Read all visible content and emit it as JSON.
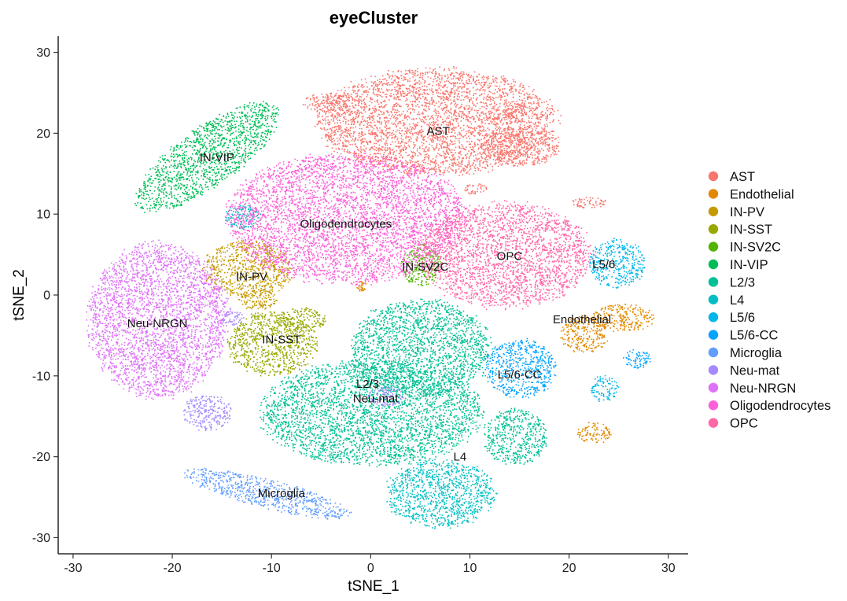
{
  "chart_data": {
    "type": "scatter",
    "title": "eyeCluster",
    "xlabel": "tSNE_1",
    "ylabel": "tSNE_2",
    "xlim": [
      -31.5,
      32
    ],
    "ylim": [
      -32,
      32
    ],
    "xticks": [
      -30,
      -20,
      -10,
      0,
      10,
      20,
      30
    ],
    "yticks": [
      -30,
      -20,
      -10,
      0,
      10,
      20,
      30
    ],
    "grid": false,
    "legend_position": "right",
    "series": [
      {
        "name": "AST",
        "color": "#F8766D",
        "regions": [
          {
            "cx": 6.5,
            "cy": 21.5,
            "rx": 12.0,
            "ry": 6.5
          },
          {
            "cx": -4.0,
            "cy": 23.8,
            "rx": 3.0,
            "ry": 1.2
          },
          {
            "cx": 15.0,
            "cy": 18.5,
            "rx": 4.0,
            "ry": 2.5
          },
          {
            "cx": 14.5,
            "cy": 22.5,
            "rx": 1.2,
            "ry": 1.2
          },
          {
            "cx": 10.5,
            "cy": 13.2,
            "rx": 1.2,
            "ry": 0.7
          },
          {
            "cx": 22.0,
            "cy": 11.5,
            "rx": 1.8,
            "ry": 0.7
          }
        ],
        "labels": [
          {
            "text": "AST",
            "x": 6.8,
            "y": 20.3
          }
        ]
      },
      {
        "name": "Endothelial",
        "color": "#E38900",
        "regions": [
          {
            "cx": 25.5,
            "cy": -2.8,
            "rx": 3.2,
            "ry": 1.7
          },
          {
            "cx": 21.5,
            "cy": -4.8,
            "rx": 2.4,
            "ry": 2.3
          },
          {
            "cx": 22.5,
            "cy": -17.0,
            "rx": 1.7,
            "ry": 1.3
          },
          {
            "cx": -1.0,
            "cy": 1.2,
            "rx": 0.5,
            "ry": 0.7
          }
        ],
        "labels": [
          {
            "text": "Endothelial",
            "x": 21.3,
            "y": -3.0
          }
        ]
      },
      {
        "name": "IN-PV",
        "color": "#C49A00",
        "regions": [
          {
            "cx": -12.5,
            "cy": 3.2,
            "rx": 4.5,
            "ry": 3.5
          },
          {
            "cx": -11.5,
            "cy": -0.5,
            "rx": 2.0,
            "ry": 1.3
          }
        ],
        "labels": [
          {
            "text": "IN-PV",
            "x": -12.0,
            "y": 2.3
          }
        ]
      },
      {
        "name": "IN-SST",
        "color": "#99A800",
        "regions": [
          {
            "cx": -10.0,
            "cy": -6.0,
            "rx": 4.5,
            "ry": 4.0
          },
          {
            "cx": -7.0,
            "cy": -3.0,
            "rx": 2.5,
            "ry": 1.5
          }
        ],
        "labels": [
          {
            "text": "IN-SST",
            "x": -9.0,
            "y": -5.5
          }
        ]
      },
      {
        "name": "IN-SV2C",
        "color": "#53B400",
        "regions": [
          {
            "cx": 5.0,
            "cy": 3.8,
            "rx": 2.0,
            "ry": 2.6
          }
        ],
        "labels": [
          {
            "text": "IN-SV2C",
            "x": 5.5,
            "y": 3.5
          }
        ]
      },
      {
        "name": "IN-VIP",
        "color": "#00BC56",
        "regions": [
          {
            "cx": -16.5,
            "cy": 17.2,
            "rx": 8.5,
            "ry": 3.6,
            "rot": 35
          }
        ],
        "labels": [
          {
            "text": "IN-VIP",
            "x": -15.5,
            "y": 17.0
          }
        ]
      },
      {
        "name": "L2/3",
        "color": "#00C094",
        "regions": [
          {
            "cx": 0.0,
            "cy": -14.5,
            "rx": 11.0,
            "ry": 6.5
          },
          {
            "cx": 5.0,
            "cy": -6.5,
            "rx": 7.0,
            "ry": 6.0
          },
          {
            "cx": 14.5,
            "cy": -17.5,
            "rx": 3.2,
            "ry": 3.5
          }
        ],
        "labels": [
          {
            "text": "L2/3",
            "x": -0.3,
            "y": -11.0
          }
        ]
      },
      {
        "name": "L4",
        "color": "#00BFC4",
        "regions": [
          {
            "cx": 7.0,
            "cy": -24.5,
            "rx": 5.5,
            "ry": 4.2
          },
          {
            "cx": -13.0,
            "cy": 9.8,
            "rx": 1.8,
            "ry": 1.6
          }
        ],
        "labels": [
          {
            "text": "L4",
            "x": 9.0,
            "y": -20.0
          }
        ]
      },
      {
        "name": "L5/6",
        "color": "#00B6EB",
        "regions": [
          {
            "cx": 24.8,
            "cy": 4.0,
            "rx": 2.8,
            "ry": 3.0
          },
          {
            "cx": 23.5,
            "cy": -11.5,
            "rx": 1.4,
            "ry": 1.6
          }
        ],
        "labels": [
          {
            "text": "L5/6",
            "x": 23.5,
            "y": 3.8
          }
        ]
      },
      {
        "name": "L5/6-CC",
        "color": "#06A4FF",
        "regions": [
          {
            "cx": 15.0,
            "cy": -9.0,
            "rx": 3.6,
            "ry": 3.6
          },
          {
            "cx": 26.8,
            "cy": -7.8,
            "rx": 1.4,
            "ry": 1.2
          }
        ],
        "labels": [
          {
            "text": "L5/6-CC",
            "x": 15.0,
            "y": -9.8
          }
        ]
      },
      {
        "name": "Microglia",
        "color": "#619CFF",
        "regions": [
          {
            "cx": -10.5,
            "cy": -24.5,
            "rx": 8.5,
            "ry": 1.8,
            "rot": -14
          }
        ],
        "labels": [
          {
            "text": "Microglia",
            "x": -9.0,
            "y": -24.5
          }
        ]
      },
      {
        "name": "Neu-mat",
        "color": "#A58AFF",
        "regions": [
          {
            "cx": -16.5,
            "cy": -14.5,
            "rx": 2.5,
            "ry": 2.2
          },
          {
            "cx": -14.0,
            "cy": -2.7,
            "rx": 1.2,
            "ry": 1.1
          },
          {
            "cx": 1.5,
            "cy": -12.5,
            "rx": 1.8,
            "ry": 1.2
          }
        ],
        "labels": [
          {
            "text": "Neu-mat",
            "x": 0.5,
            "y": -12.8
          }
        ]
      },
      {
        "name": "Neu-NRGN",
        "color": "#DF70F8",
        "regions": [
          {
            "cx": -21.5,
            "cy": -3.0,
            "rx": 7.0,
            "ry": 9.5
          }
        ],
        "labels": [
          {
            "text": "Neu-NRGN",
            "x": -21.5,
            "y": -3.5
          }
        ]
      },
      {
        "name": "Oligodendrocytes",
        "color": "#FB61D7",
        "regions": [
          {
            "cx": -2.5,
            "cy": 9.5,
            "rx": 12.0,
            "ry": 8.0
          }
        ],
        "labels": [
          {
            "text": "Oligodendrocytes",
            "x": -2.5,
            "y": 8.8
          }
        ]
      },
      {
        "name": "OPC",
        "color": "#FF66A8",
        "regions": [
          {
            "cx": 13.5,
            "cy": 5.0,
            "rx": 8.5,
            "ry": 6.5
          }
        ],
        "labels": [
          {
            "text": "OPC",
            "x": 14.0,
            "y": 4.8
          }
        ]
      }
    ]
  }
}
